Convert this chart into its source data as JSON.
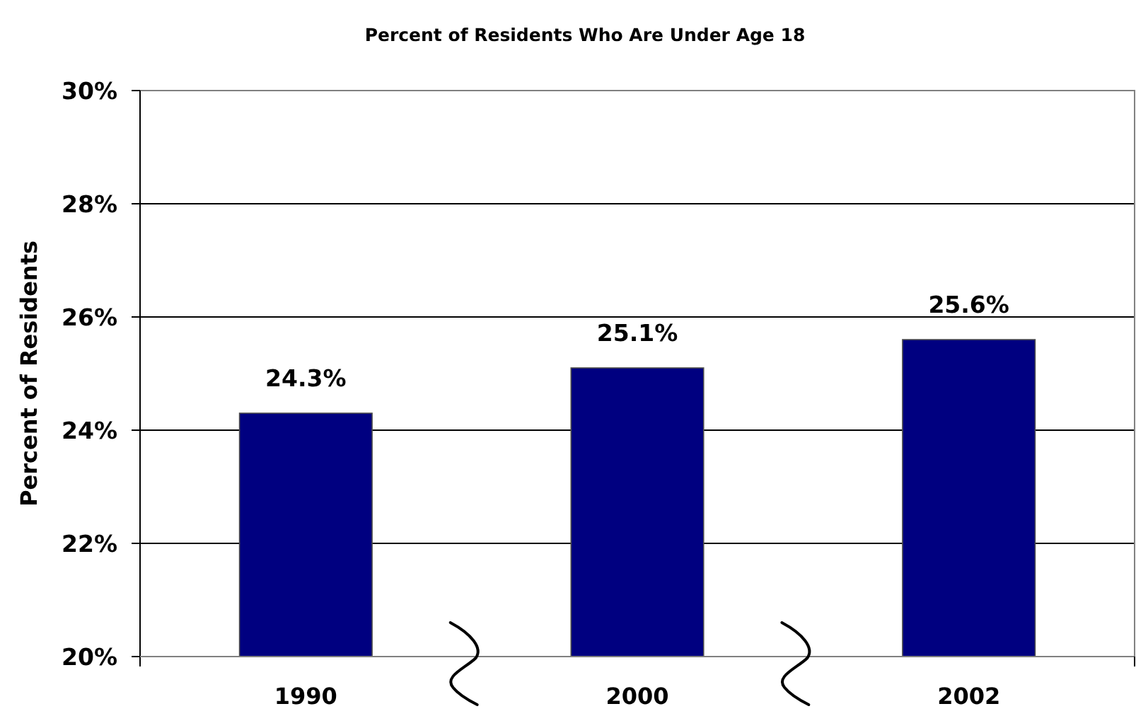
{
  "chart_data": {
    "type": "bar",
    "title": "Percent of Residents Who Are Under Age 18",
    "ylabel": "Percent of Residents",
    "categories": [
      "1990",
      "2000",
      "2002"
    ],
    "values": [
      24.3,
      25.1,
      25.6
    ],
    "color": "#000080",
    "value_labels": [
      "24.3%",
      "25.1%",
      "25.6%"
    ],
    "ylim": [
      20,
      30
    ],
    "yticks": [
      {
        "value": 20,
        "label": "20%"
      },
      {
        "value": 22,
        "label": "22%"
      },
      {
        "value": 24,
        "label": "24%"
      },
      {
        "value": 26,
        "label": "26%"
      },
      {
        "value": 28,
        "label": "28%"
      },
      {
        "value": 30,
        "label": "30%"
      }
    ],
    "grid": "y"
  }
}
